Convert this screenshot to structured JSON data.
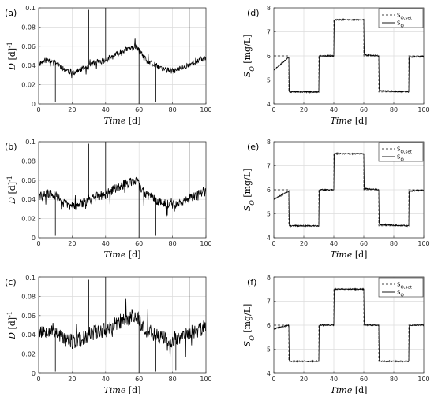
{
  "chart_data": [
    {
      "panel": "(a)",
      "type": "line",
      "xlabel": "Time [d]",
      "ylabel": "D [d]^-1",
      "xlim": [
        0,
        100
      ],
      "ylim": [
        0,
        0.1
      ],
      "xticks": [
        "0",
        "20",
        "40",
        "60",
        "80",
        "100"
      ],
      "yticks": [
        "0",
        "0.02",
        "0.04",
        "0.06",
        "0.08",
        "0.1"
      ],
      "grid": true,
      "series": [
        {
          "style": "solid",
          "noise": 0.003,
          "seed": 11,
          "x": [
            0,
            5,
            10,
            15,
            20,
            25,
            30,
            35,
            40,
            45,
            50,
            55,
            58,
            62,
            65,
            70,
            75,
            80,
            85,
            90,
            95,
            100
          ],
          "y": [
            0.042,
            0.046,
            0.044,
            0.036,
            0.033,
            0.035,
            0.04,
            0.044,
            0.045,
            0.05,
            0.055,
            0.058,
            0.06,
            0.05,
            0.044,
            0.04,
            0.036,
            0.034,
            0.037,
            0.041,
            0.045,
            0.048
          ],
          "spikes": [
            [
              10,
              0.002
            ],
            [
              30,
              0.098
            ],
            [
              40,
              0.1
            ],
            [
              60,
              0.0
            ],
            [
              70,
              0.002
            ],
            [
              90,
              0.1
            ]
          ]
        }
      ]
    },
    {
      "panel": "(b)",
      "type": "line",
      "xlabel": "Time [d]",
      "ylabel": "D [d]^-1",
      "xlim": [
        0,
        100
      ],
      "ylim": [
        0,
        0.1
      ],
      "xticks": [
        "0",
        "20",
        "40",
        "60",
        "80",
        "100"
      ],
      "yticks": [
        "0",
        "0.02",
        "0.04",
        "0.06",
        "0.08",
        "0.1"
      ],
      "grid": true,
      "series": [
        {
          "style": "solid",
          "noise": 0.005,
          "seed": 29,
          "x": [
            0,
            5,
            10,
            15,
            20,
            25,
            30,
            35,
            40,
            45,
            50,
            55,
            58,
            62,
            65,
            70,
            75,
            80,
            85,
            90,
            95,
            100
          ],
          "y": [
            0.042,
            0.046,
            0.044,
            0.036,
            0.033,
            0.035,
            0.04,
            0.044,
            0.045,
            0.05,
            0.055,
            0.058,
            0.06,
            0.05,
            0.044,
            0.04,
            0.036,
            0.034,
            0.037,
            0.041,
            0.045,
            0.048
          ],
          "spikes": [
            [
              10,
              0.002
            ],
            [
              30,
              0.098
            ],
            [
              40,
              0.1
            ],
            [
              60,
              0.0
            ],
            [
              70,
              0.002
            ],
            [
              90,
              0.1
            ]
          ]
        }
      ]
    },
    {
      "panel": "(c)",
      "type": "line",
      "xlabel": "Time [d]",
      "ylabel": "D [d]^-1",
      "xlim": [
        0,
        100
      ],
      "ylim": [
        0,
        0.1
      ],
      "xticks": [
        "0",
        "20",
        "40",
        "60",
        "80",
        "100"
      ],
      "yticks": [
        "0",
        "0.02",
        "0.04",
        "0.06",
        "0.08",
        "0.1"
      ],
      "grid": true,
      "series": [
        {
          "style": "solid",
          "noise": 0.008,
          "seed": 53,
          "x": [
            0,
            5,
            10,
            15,
            20,
            25,
            30,
            35,
            40,
            45,
            50,
            55,
            58,
            62,
            65,
            70,
            75,
            80,
            85,
            90,
            95,
            100
          ],
          "y": [
            0.042,
            0.046,
            0.044,
            0.036,
            0.033,
            0.035,
            0.04,
            0.044,
            0.045,
            0.05,
            0.055,
            0.058,
            0.06,
            0.05,
            0.044,
            0.04,
            0.036,
            0.034,
            0.037,
            0.041,
            0.045,
            0.048
          ],
          "spikes": [
            [
              10,
              0.002
            ],
            [
              30,
              0.098
            ],
            [
              40,
              0.1
            ],
            [
              60,
              0.0
            ],
            [
              70,
              0.002
            ],
            [
              82,
              0.003
            ],
            [
              90,
              0.1
            ]
          ]
        }
      ]
    },
    {
      "panel": "(d)",
      "type": "line",
      "xlabel": "Time [d]",
      "ylabel": "S_O [mg/L]",
      "xlim": [
        0,
        100
      ],
      "ylim": [
        4,
        8
      ],
      "xticks": [
        "0",
        "20",
        "40",
        "60",
        "80",
        "100"
      ],
      "yticks": [
        "4",
        "5",
        "6",
        "7",
        "8"
      ],
      "grid": true,
      "legend": "top-right",
      "series": [
        {
          "name": "S_O,set",
          "style": "dashed",
          "x": [
            0,
            10,
            10,
            30,
            30,
            40,
            40,
            60,
            60,
            70,
            70,
            90,
            90,
            100
          ],
          "y": [
            6,
            6,
            4.5,
            4.5,
            6,
            6,
            7.5,
            7.5,
            6,
            6,
            4.5,
            4.5,
            6,
            6
          ]
        },
        {
          "name": "S_O",
          "style": "solid",
          "noise": 0.025,
          "seed": 7,
          "x": [
            0,
            10,
            10.3,
            30,
            30.3,
            40,
            40.3,
            60,
            60.3,
            70,
            70.3,
            90,
            90.3,
            100
          ],
          "y": [
            5.4,
            5.95,
            4.5,
            4.5,
            6.0,
            6.0,
            7.5,
            7.5,
            6.05,
            6.0,
            4.55,
            4.5,
            5.95,
            5.98
          ]
        }
      ]
    },
    {
      "panel": "(e)",
      "type": "line",
      "xlabel": "Time [d]",
      "ylabel": "S_O [mg/L]",
      "xlim": [
        0,
        100
      ],
      "ylim": [
        4,
        8
      ],
      "xticks": [
        "0",
        "20",
        "40",
        "60",
        "80",
        "100"
      ],
      "yticks": [
        "4",
        "5",
        "6",
        "7",
        "8"
      ],
      "grid": true,
      "legend": "top-right",
      "series": [
        {
          "name": "S_O,set",
          "style": "dashed",
          "x": [
            0,
            10,
            10,
            30,
            30,
            40,
            40,
            60,
            60,
            70,
            70,
            90,
            90,
            100
          ],
          "y": [
            6,
            6,
            4.5,
            4.5,
            6,
            6,
            7.5,
            7.5,
            6,
            6,
            4.5,
            4.5,
            6,
            6
          ]
        },
        {
          "name": "S_O",
          "style": "solid",
          "noise": 0.025,
          "seed": 13,
          "x": [
            0,
            10,
            10.3,
            30,
            30.3,
            40,
            40.3,
            60,
            60.3,
            70,
            70.3,
            90,
            90.3,
            100
          ],
          "y": [
            5.6,
            5.95,
            4.5,
            4.5,
            6.0,
            6.0,
            7.5,
            7.5,
            6.05,
            6.0,
            4.55,
            4.5,
            5.95,
            5.98
          ]
        }
      ]
    },
    {
      "panel": "(f)",
      "type": "line",
      "xlabel": "Time [d]",
      "ylabel": "S_O [mg/L]",
      "xlim": [
        0,
        100
      ],
      "ylim": [
        4,
        8
      ],
      "xticks": [
        "0",
        "20",
        "40",
        "60",
        "80",
        "100"
      ],
      "yticks": [
        "4",
        "5",
        "6",
        "7",
        "8"
      ],
      "grid": true,
      "legend": "top-right",
      "series": [
        {
          "name": "S_O,set",
          "style": "dashed",
          "x": [
            0,
            10,
            10,
            30,
            30,
            40,
            40,
            60,
            60,
            70,
            70,
            90,
            90,
            100
          ],
          "y": [
            6,
            6,
            4.5,
            4.5,
            6,
            6,
            7.5,
            7.5,
            6,
            6,
            4.5,
            4.5,
            6,
            6
          ]
        },
        {
          "name": "S_O",
          "style": "solid",
          "noise": 0.025,
          "seed": 31,
          "x": [
            0,
            10,
            10.3,
            30,
            30.3,
            40,
            40.3,
            60,
            60.3,
            70,
            70.3,
            90,
            90.3,
            100
          ],
          "y": [
            5.85,
            6.0,
            4.5,
            4.5,
            6.0,
            6.0,
            7.5,
            7.5,
            6.0,
            6.0,
            4.5,
            4.5,
            6.0,
            6.0
          ]
        }
      ]
    }
  ]
}
